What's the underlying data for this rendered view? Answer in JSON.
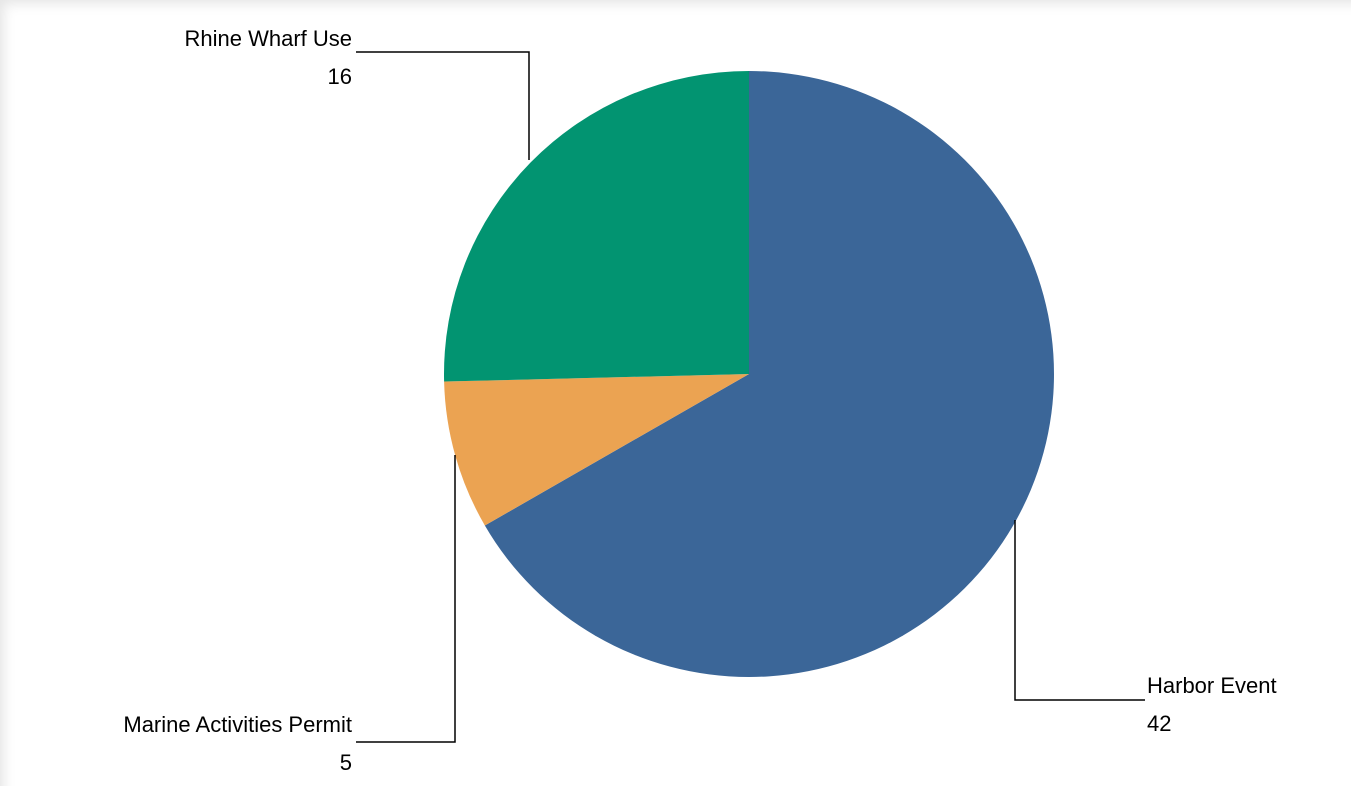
{
  "chart_data": {
    "type": "pie",
    "title": "",
    "slices": [
      {
        "label": "Harbor Event",
        "value": 42,
        "color": "#3b6698"
      },
      {
        "label": "Marine Activities Permit",
        "value": 5,
        "color": "#eba352"
      },
      {
        "label": "Rhine Wharf Use",
        "value": 16,
        "color": "#029471"
      }
    ],
    "start": "12 o'clock",
    "direction": "clockwise",
    "legend": "none",
    "data_labels": "outside with leader lines"
  }
}
